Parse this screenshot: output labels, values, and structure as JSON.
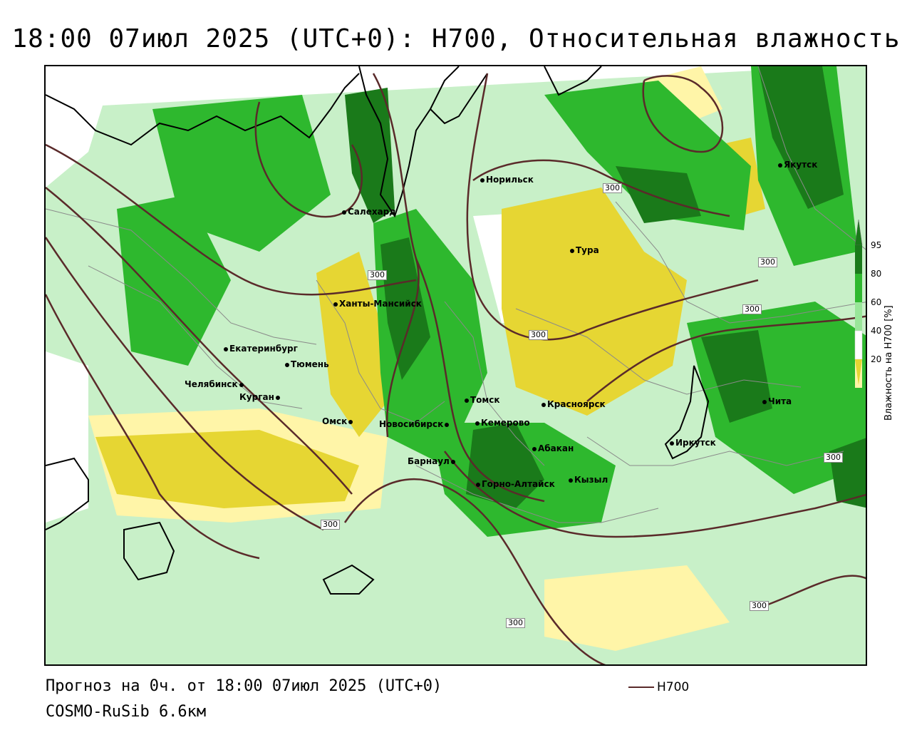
{
  "title": "18:00 07июл 2025 (UTC+0): H700, Относительная влажность",
  "footer": {
    "forecast": "Прогноз на 0ч. от 18:00 07июл 2025 (UTC+0)",
    "model": "COSMO-RuSib 6.6км",
    "contour_key": "H700"
  },
  "legend": {
    "title": "Влажность на H700 [%]",
    "ticks": [
      "95",
      "80",
      "60",
      "40",
      "20"
    ],
    "colors": {
      "c95": "#1a7a1a",
      "c80": "#2eb82e",
      "c60": "#99e699",
      "c40": "#ffffff",
      "c20": "#fff5a8",
      "c0": "#e6d633"
    }
  },
  "contour_labels": [
    "300",
    "300",
    "300",
    "300",
    "300",
    "300",
    "300",
    "300",
    "300"
  ],
  "cities": [
    {
      "name": "Якутск"
    },
    {
      "name": "Норильск"
    },
    {
      "name": "Салехард"
    },
    {
      "name": "Тура"
    },
    {
      "name": "Ханты-Мансийск"
    },
    {
      "name": "Екатеринбург"
    },
    {
      "name": "Тюмень"
    },
    {
      "name": "Челябинск"
    },
    {
      "name": "Курган"
    },
    {
      "name": "Омск"
    },
    {
      "name": "Новосибирск"
    },
    {
      "name": "Томск"
    },
    {
      "name": "Кемерово"
    },
    {
      "name": "Красноярск"
    },
    {
      "name": "Абакан"
    },
    {
      "name": "Барнаул"
    },
    {
      "name": "Горно-Алтайск"
    },
    {
      "name": "Кызыл"
    },
    {
      "name": "Иркутск"
    },
    {
      "name": "Чита"
    }
  ]
}
